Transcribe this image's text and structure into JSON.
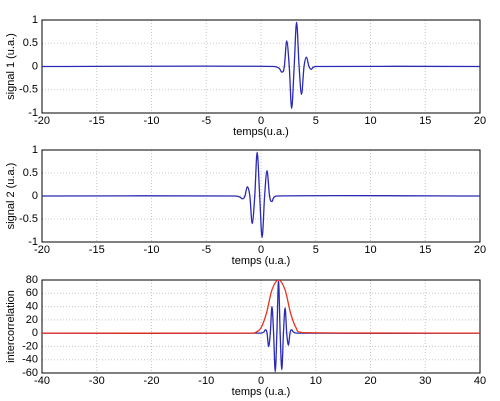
{
  "chart_data": [
    {
      "type": "line",
      "ylabel": "signal 1 (u.a.)",
      "xlabel": "temps(u.a.)",
      "xlim": [
        -20,
        20
      ],
      "xticks": [
        -20,
        -15,
        -10,
        -5,
        0,
        5,
        10,
        15,
        20
      ],
      "ylim": [
        -1,
        1
      ],
      "yticks": [
        -1,
        -0.5,
        0,
        0.5,
        1
      ],
      "grid": true,
      "series": [
        {
          "color": "#2a2ab4",
          "x": [
            -20,
            1.2,
            1.9,
            2.13,
            2.35,
            2.58,
            2.8,
            3.03,
            3.25,
            3.48,
            3.7,
            3.93,
            4.15,
            4.38,
            4.6,
            5.0,
            20
          ],
          "values": [
            0,
            0,
            -0.12,
            0,
            0.55,
            0,
            -0.9,
            0,
            0.95,
            0,
            -0.6,
            0,
            0.2,
            0,
            -0.06,
            0,
            0
          ]
        }
      ]
    },
    {
      "type": "line",
      "ylabel": "signal 2 (u.a.)",
      "xlabel": "temps (u.a.)",
      "xlim": [
        -20,
        20
      ],
      "xticks": [
        -20,
        -15,
        -10,
        -5,
        0,
        5,
        10,
        15,
        20
      ],
      "ylim": [
        -1,
        1
      ],
      "yticks": [
        -1,
        -0.5,
        0,
        0.5,
        1
      ],
      "grid": true,
      "series": [
        {
          "color": "#2a2ab4",
          "x": [
            -20,
            -2.4,
            -1.7,
            -1.47,
            -1.25,
            -1.02,
            -0.8,
            -0.57,
            -0.35,
            -0.12,
            0.1,
            0.33,
            0.55,
            0.78,
            1.0,
            1.4,
            20
          ],
          "values": [
            0,
            0,
            -0.06,
            0,
            0.2,
            0,
            -0.6,
            0,
            0.95,
            0,
            -0.9,
            0,
            0.55,
            0,
            -0.12,
            0,
            0
          ]
        }
      ]
    },
    {
      "type": "line",
      "ylabel": "intercorrelation",
      "xlabel": "temps (u.a.)",
      "xlim": [
        -40,
        40
      ],
      "xticks": [
        -40,
        -30,
        -20,
        -10,
        0,
        10,
        20,
        30,
        40
      ],
      "ylim": [
        -60,
        80
      ],
      "yticks": [
        -60,
        -40,
        -20,
        0,
        20,
        40,
        60,
        80
      ],
      "grid": true,
      "series": [
        {
          "color": "#2a2ab4",
          "x": [
            -40,
            0,
            0.8,
            1.1,
            1.4,
            1.7,
            2.0,
            2.3,
            2.6,
            2.9,
            3.2,
            3.5,
            3.8,
            4.1,
            4.4,
            4.7,
            5.0,
            5.3,
            5.6,
            6.5,
            40
          ],
          "values": [
            0,
            0,
            5,
            0,
            -20,
            0,
            40,
            0,
            -58,
            0,
            78,
            0,
            -55,
            0,
            38,
            0,
            -18,
            0,
            5,
            0,
            0
          ]
        },
        {
          "color": "#e8321e",
          "x": [
            -40,
            -2,
            -1,
            0,
            1,
            2,
            3.2,
            4.4,
            5.4,
            6.4,
            7.4,
            40
          ],
          "values": [
            0,
            0,
            1,
            8,
            30,
            65,
            80,
            65,
            30,
            8,
            1,
            0
          ]
        }
      ]
    }
  ]
}
